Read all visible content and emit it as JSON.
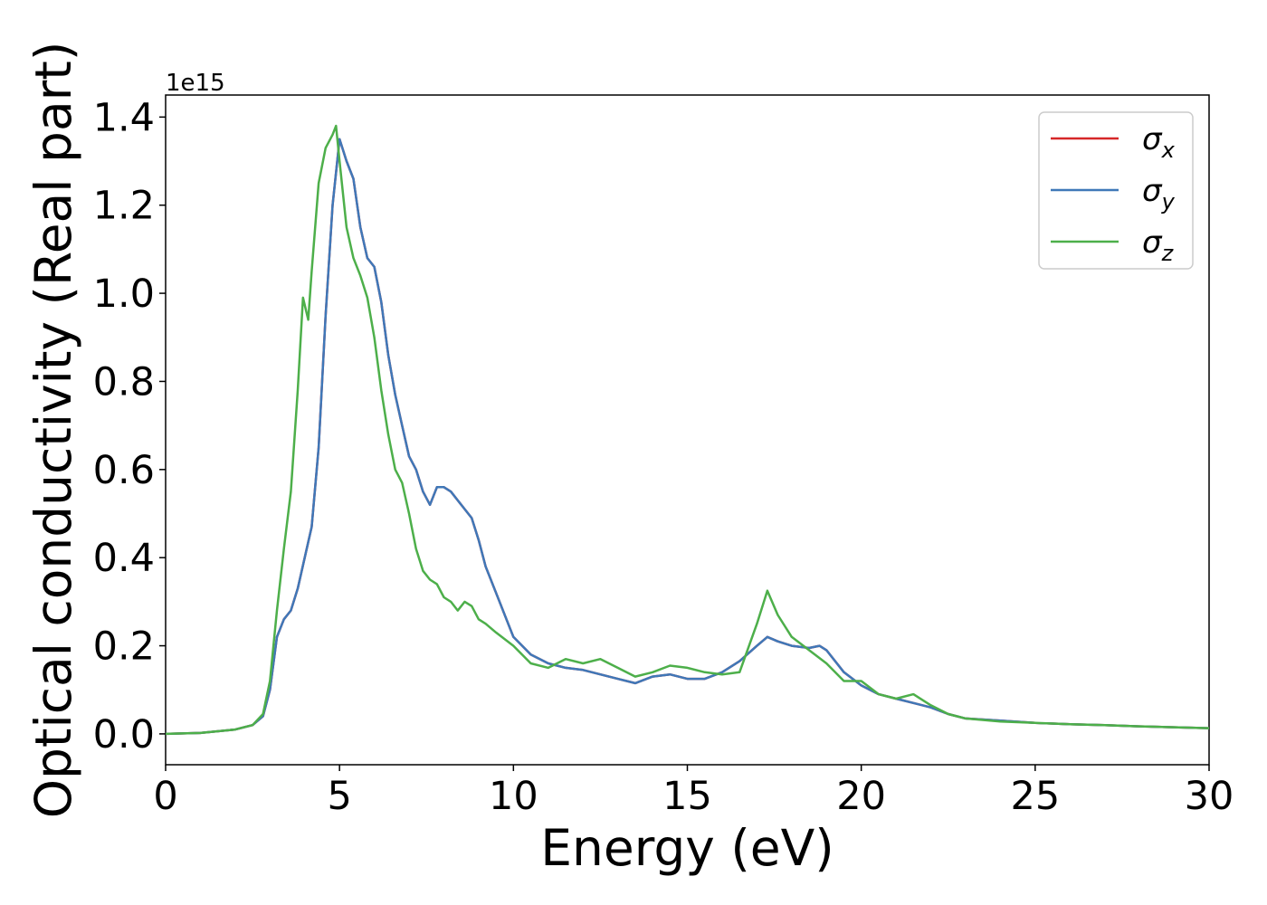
{
  "chart_data": {
    "type": "line",
    "xlabel": "Energy (eV)",
    "ylabel": "Optical conductivity (Real part)",
    "y_offset_text": "1e15",
    "xlim": [
      0,
      30
    ],
    "ylim": [
      -0.07,
      1.45
    ],
    "xticks": [
      0,
      5,
      10,
      15,
      20,
      25,
      30
    ],
    "xtick_labels": [
      "0",
      "5",
      "10",
      "15",
      "20",
      "25",
      "30"
    ],
    "yticks": [
      0.0,
      0.2,
      0.4,
      0.6,
      0.8,
      1.0,
      1.2,
      1.4
    ],
    "ytick_labels": [
      "0.0",
      "0.2",
      "0.4",
      "0.6",
      "0.8",
      "1.0",
      "1.2",
      "1.4"
    ],
    "legend": {
      "position": "top-right"
    },
    "grid": false,
    "series": [
      {
        "name": "σx",
        "name_base": "σ",
        "name_sub": "x",
        "color": "#d62728",
        "x": [
          0,
          1,
          2,
          2.5,
          2.8,
          3.0,
          3.2,
          3.4,
          3.6,
          3.8,
          4.0,
          4.2,
          4.4,
          4.6,
          4.8,
          5.0,
          5.2,
          5.4,
          5.6,
          5.8,
          6.0,
          6.2,
          6.4,
          6.6,
          6.8,
          7.0,
          7.2,
          7.4,
          7.6,
          7.8,
          8.0,
          8.2,
          8.4,
          8.6,
          8.8,
          9.0,
          9.2,
          9.4,
          9.6,
          9.8,
          10.0,
          10.5,
          11.0,
          11.5,
          12.0,
          12.5,
          13.0,
          13.5,
          14.0,
          14.5,
          15.0,
          15.5,
          16.0,
          16.5,
          17.0,
          17.3,
          17.6,
          18.0,
          18.5,
          18.8,
          19.0,
          19.5,
          20.0,
          20.5,
          21.0,
          21.5,
          22.0,
          22.5,
          23.0,
          24.0,
          25.0,
          26.0,
          27.0,
          28.0,
          29.0,
          30.0
        ],
        "y": [
          0.0,
          0.002,
          0.01,
          0.02,
          0.04,
          0.1,
          0.22,
          0.26,
          0.28,
          0.33,
          0.4,
          0.47,
          0.65,
          0.95,
          1.2,
          1.35,
          1.3,
          1.26,
          1.15,
          1.08,
          1.06,
          0.98,
          0.86,
          0.77,
          0.7,
          0.63,
          0.6,
          0.55,
          0.52,
          0.56,
          0.56,
          0.55,
          0.53,
          0.51,
          0.49,
          0.44,
          0.38,
          0.34,
          0.3,
          0.26,
          0.22,
          0.18,
          0.16,
          0.15,
          0.145,
          0.135,
          0.125,
          0.115,
          0.13,
          0.135,
          0.125,
          0.125,
          0.14,
          0.165,
          0.2,
          0.22,
          0.21,
          0.2,
          0.195,
          0.2,
          0.19,
          0.14,
          0.11,
          0.09,
          0.08,
          0.07,
          0.06,
          0.045,
          0.035,
          0.03,
          0.025,
          0.022,
          0.02,
          0.017,
          0.015,
          0.013
        ]
      },
      {
        "name": "σy",
        "name_base": "σ",
        "name_sub": "y",
        "color": "#3f78b8",
        "x": [
          0,
          1,
          2,
          2.5,
          2.8,
          3.0,
          3.2,
          3.4,
          3.6,
          3.8,
          4.0,
          4.2,
          4.4,
          4.6,
          4.8,
          5.0,
          5.2,
          5.4,
          5.6,
          5.8,
          6.0,
          6.2,
          6.4,
          6.6,
          6.8,
          7.0,
          7.2,
          7.4,
          7.6,
          7.8,
          8.0,
          8.2,
          8.4,
          8.6,
          8.8,
          9.0,
          9.2,
          9.4,
          9.6,
          9.8,
          10.0,
          10.5,
          11.0,
          11.5,
          12.0,
          12.5,
          13.0,
          13.5,
          14.0,
          14.5,
          15.0,
          15.5,
          16.0,
          16.5,
          17.0,
          17.3,
          17.6,
          18.0,
          18.5,
          18.8,
          19.0,
          19.5,
          20.0,
          20.5,
          21.0,
          21.5,
          22.0,
          22.5,
          23.0,
          24.0,
          25.0,
          26.0,
          27.0,
          28.0,
          29.0,
          30.0
        ],
        "y": [
          0.0,
          0.002,
          0.01,
          0.02,
          0.04,
          0.1,
          0.22,
          0.26,
          0.28,
          0.33,
          0.4,
          0.47,
          0.65,
          0.95,
          1.2,
          1.35,
          1.3,
          1.26,
          1.15,
          1.08,
          1.06,
          0.98,
          0.86,
          0.77,
          0.7,
          0.63,
          0.6,
          0.55,
          0.52,
          0.56,
          0.56,
          0.55,
          0.53,
          0.51,
          0.49,
          0.44,
          0.38,
          0.34,
          0.3,
          0.26,
          0.22,
          0.18,
          0.16,
          0.15,
          0.145,
          0.135,
          0.125,
          0.115,
          0.13,
          0.135,
          0.125,
          0.125,
          0.14,
          0.165,
          0.2,
          0.22,
          0.21,
          0.2,
          0.195,
          0.2,
          0.19,
          0.14,
          0.11,
          0.09,
          0.08,
          0.07,
          0.06,
          0.045,
          0.035,
          0.03,
          0.025,
          0.022,
          0.02,
          0.017,
          0.015,
          0.013
        ]
      },
      {
        "name": "σz",
        "name_base": "σ",
        "name_sub": "z",
        "color": "#4daf4a",
        "x": [
          0,
          1,
          2,
          2.5,
          2.8,
          3.0,
          3.2,
          3.4,
          3.6,
          3.8,
          3.95,
          4.1,
          4.2,
          4.4,
          4.6,
          4.8,
          4.9,
          5.0,
          5.2,
          5.4,
          5.6,
          5.8,
          6.0,
          6.2,
          6.4,
          6.6,
          6.8,
          7.0,
          7.2,
          7.4,
          7.6,
          7.8,
          8.0,
          8.2,
          8.4,
          8.6,
          8.8,
          9.0,
          9.2,
          9.5,
          10.0,
          10.5,
          11.0,
          11.5,
          12.0,
          12.5,
          13.0,
          13.5,
          14.0,
          14.5,
          15.0,
          15.5,
          16.0,
          16.5,
          17.0,
          17.3,
          17.6,
          18.0,
          18.5,
          19.0,
          19.5,
          20.0,
          20.5,
          21.0,
          21.5,
          22.0,
          22.5,
          23.0,
          24.0,
          25.0,
          26.0,
          27.0,
          28.0,
          29.0,
          30.0
        ],
        "y": [
          0.0,
          0.002,
          0.01,
          0.02,
          0.045,
          0.12,
          0.28,
          0.42,
          0.55,
          0.78,
          0.99,
          0.94,
          1.05,
          1.25,
          1.33,
          1.36,
          1.38,
          1.3,
          1.15,
          1.08,
          1.04,
          0.99,
          0.9,
          0.78,
          0.68,
          0.6,
          0.57,
          0.5,
          0.42,
          0.37,
          0.35,
          0.34,
          0.31,
          0.3,
          0.28,
          0.3,
          0.29,
          0.26,
          0.25,
          0.23,
          0.2,
          0.16,
          0.15,
          0.17,
          0.16,
          0.17,
          0.15,
          0.13,
          0.14,
          0.155,
          0.15,
          0.14,
          0.135,
          0.14,
          0.25,
          0.325,
          0.27,
          0.22,
          0.19,
          0.16,
          0.12,
          0.12,
          0.09,
          0.08,
          0.09,
          0.065,
          0.045,
          0.035,
          0.028,
          0.025,
          0.022,
          0.02,
          0.017,
          0.015,
          0.013
        ]
      }
    ]
  }
}
